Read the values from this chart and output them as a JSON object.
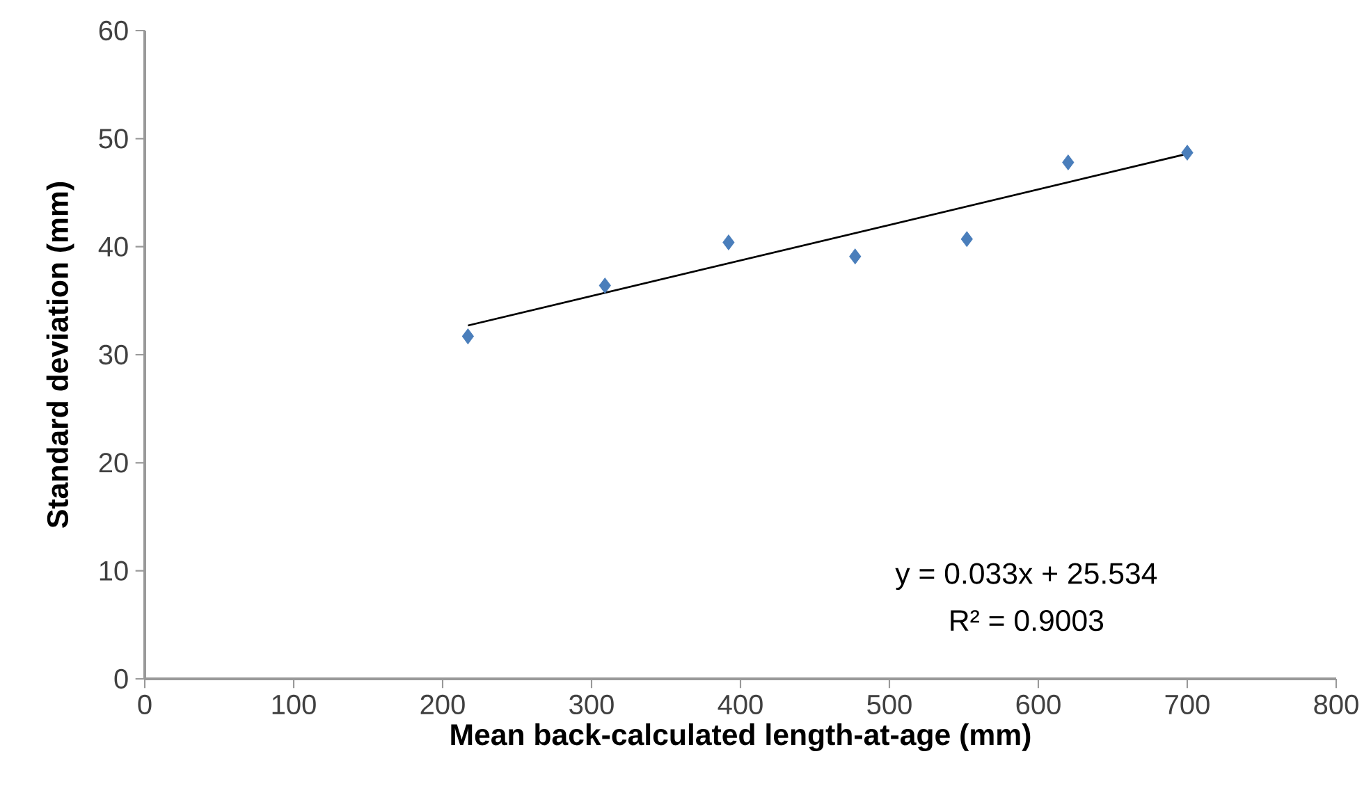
{
  "chart_data": {
    "type": "scatter",
    "xlabel": "Mean back-calculated length-at-age (mm)",
    "ylabel": "Standard deviation (mm)",
    "annotations": [
      "y = 0.033x + 25.534",
      "R² = 0.9003"
    ],
    "series": [
      {
        "color": "#4a7ebb",
        "marker": "diamond",
        "x": [
          217,
          309,
          392,
          477,
          552,
          620,
          700
        ],
        "values": [
          31.7,
          36.4,
          40.4,
          39.1,
          40.7,
          47.8,
          48.7
        ]
      },
      {
        "type": "line",
        "color": "#000000",
        "marker": "none",
        "line_style": "solid",
        "x": [
          217,
          700
        ],
        "values": [
          32.7,
          48.6
        ]
      }
    ],
    "xlim": [
      0,
      800
    ],
    "xticks": [
      0,
      100,
      200,
      300,
      400,
      500,
      600,
      700,
      800
    ],
    "ylim": [
      0,
      60
    ],
    "yticks": [
      0,
      10,
      20,
      30,
      40,
      50,
      60
    ]
  }
}
